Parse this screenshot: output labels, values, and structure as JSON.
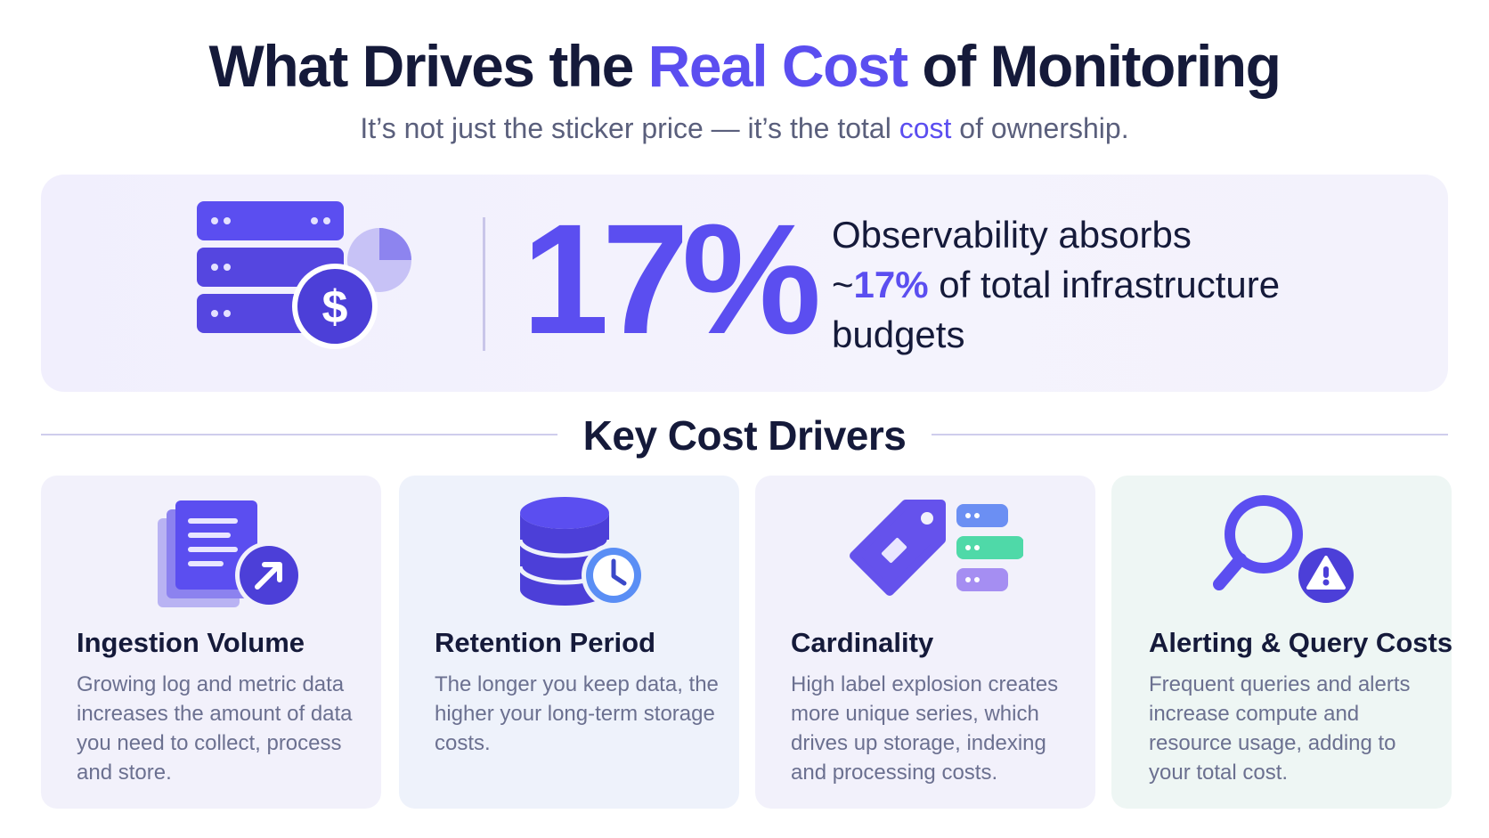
{
  "title": {
    "part1": "What Drives the ",
    "accent": "Real Cost",
    "part2": " of Monitoring"
  },
  "subtitle": {
    "part1": "It’s not just the sticker price — it’s the total ",
    "accent": "cost",
    "part2": " of ownership."
  },
  "stat": {
    "value": "17%",
    "line1": "Observability absorbs",
    "prefix": "~",
    "highlight": "17%",
    "line2_rest": " of total infrastructure",
    "line3": "budgets",
    "icon": "server-dollar-pie-icon"
  },
  "drivers_heading": "Key Cost Drivers",
  "cards": [
    {
      "title": "Ingestion Volume",
      "body": "Growing log and metric data increases the amount of data you need to collect, process and store.",
      "icon": "documents-arrow-icon"
    },
    {
      "title": "Retention Period",
      "body": "The longer you keep data, the higher your long-term storage costs.",
      "icon": "database-clock-icon"
    },
    {
      "title": "Cardinality",
      "body": "High label explosion creates more unique series, which drives up storage, indexing and processing costs.",
      "icon": "tag-series-icon"
    },
    {
      "title": "Alerting & Query Costs",
      "body": "Frequent queries and alerts increase compute and resource usage, adding to your total cost.",
      "icon": "magnifier-alert-icon"
    }
  ],
  "colors": {
    "accent": "#5b4ef0",
    "dark": "#151a3a",
    "muted": "#6b7090",
    "green": "#4fd9a8",
    "blue": "#5a8ef5"
  }
}
